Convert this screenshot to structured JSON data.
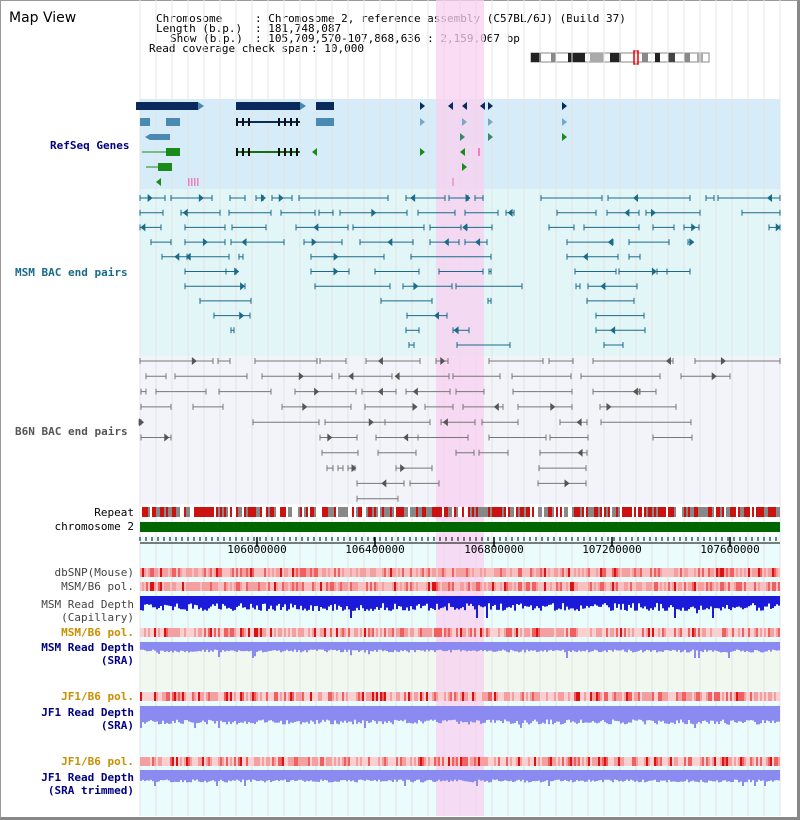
{
  "app": {
    "title": "Map View"
  },
  "info": {
    "chromosome_key": "Chromosome",
    "chromosome_value": ": Chromosome 2, reference assembly (C57BL/6J) (Build 37)",
    "length_key": "Length (b.p.)",
    "length_value": ": 181,748,087",
    "show_key": "Show (b.p.)",
    "show_value": ": 105,709,570-107,868,636 : 2,159,067 bp",
    "coverage_key": "Read coverage check span",
    "coverage_value": ": 10,000"
  },
  "tracks": {
    "refseq": "RefSeq Genes",
    "msm_bac": "MSM BAC end pairs",
    "b6n_bac": "B6N BAC end pairs",
    "repeat": "Repeat",
    "chromosome": "chromosome 2"
  },
  "axis": {
    "ticks": [
      "106000000",
      "106400000",
      "106800000",
      "107200000",
      "107600000"
    ]
  },
  "rows": {
    "dbsnp": "dbSNP(Mouse)",
    "msm_b6_pol": "MSM/B6 pol.",
    "msm_depth_cap_1": "MSM Read Depth",
    "msm_depth_cap_2": "(Capillary)",
    "msm_b6_pol_2": "MSM/B6 pol.",
    "msm_depth_sra_1": "MSM Read Depth",
    "msm_depth_sra_2": "(SRA)",
    "jf1_b6_pol": "JF1/B6 pol.",
    "jf1_depth_sra_1": "JF1 Read Depth",
    "jf1_depth_sra_2": "(SRA)",
    "jf1_b6_pol_2": "JF1/B6 pol.",
    "jf1_depth_trim_1": "JF1 Read Depth",
    "jf1_depth_trim_2": "(SRA trimmed)"
  },
  "colors": {
    "refseq_bg": "#d6ecf8",
    "msm_bg": "#e2f6f8",
    "b6n_bg": "#f2f4fa",
    "lower_bg": "#eafcfc",
    "highlight": "#f8d0f0",
    "chromosome": "#006600",
    "capillary": "#1a1ad8",
    "sra": "#8a8af0",
    "pol": "#f08080",
    "label_blue": "#000080",
    "label_orange": "#c89000"
  }
}
